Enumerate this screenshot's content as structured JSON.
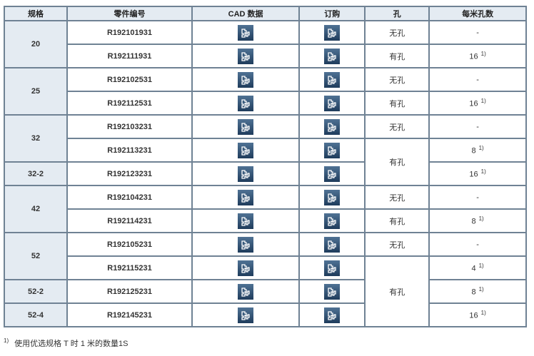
{
  "headers": [
    "规格",
    "零件编号",
    "CAD 数据",
    "订购",
    "孔",
    "每米孔数"
  ],
  "rows": [
    {
      "spec": "20",
      "part": "R192101931",
      "hole": "无孔",
      "per_meter": "-",
      "note": ""
    },
    {
      "part": "R192111931",
      "hole": "有孔",
      "per_meter": "16",
      "note": "1)"
    },
    {
      "spec": "25",
      "part": "R192102531",
      "hole": "无孔",
      "per_meter": "-",
      "note": ""
    },
    {
      "part": "R192112531",
      "hole": "有孔",
      "per_meter": "16",
      "note": "1)"
    },
    {
      "spec": "32",
      "part": "R192103231",
      "hole": "无孔",
      "per_meter": "-",
      "note": ""
    },
    {
      "part": "R192113231",
      "hole": "有孔",
      "per_meter": "8",
      "note": "1)"
    },
    {
      "spec": "32-2",
      "part": "R192123231",
      "per_meter": "16",
      "note": "1)"
    },
    {
      "spec": "42",
      "part": "R192104231",
      "hole": "无孔",
      "per_meter": "-",
      "note": ""
    },
    {
      "part": "R192114231",
      "hole": "有孔",
      "per_meter": "8",
      "note": "1)"
    },
    {
      "spec": "52",
      "part": "R192105231",
      "hole": "无孔",
      "per_meter": "-",
      "note": ""
    },
    {
      "part": "R192115231",
      "hole": "有孔",
      "per_meter": "4",
      "note": "1)"
    },
    {
      "spec": "52-2",
      "part": "R192125231",
      "per_meter": "8",
      "note": "1)"
    },
    {
      "spec": "52-4",
      "part": "R192145231",
      "per_meter": "16",
      "note": "1)"
    }
  ],
  "icons": {
    "cad": "puzzle-icon",
    "order": "puzzle-icon"
  },
  "footnote": {
    "mark": "1)",
    "text": "使用优选规格 T 时 1 米的数量1S"
  }
}
